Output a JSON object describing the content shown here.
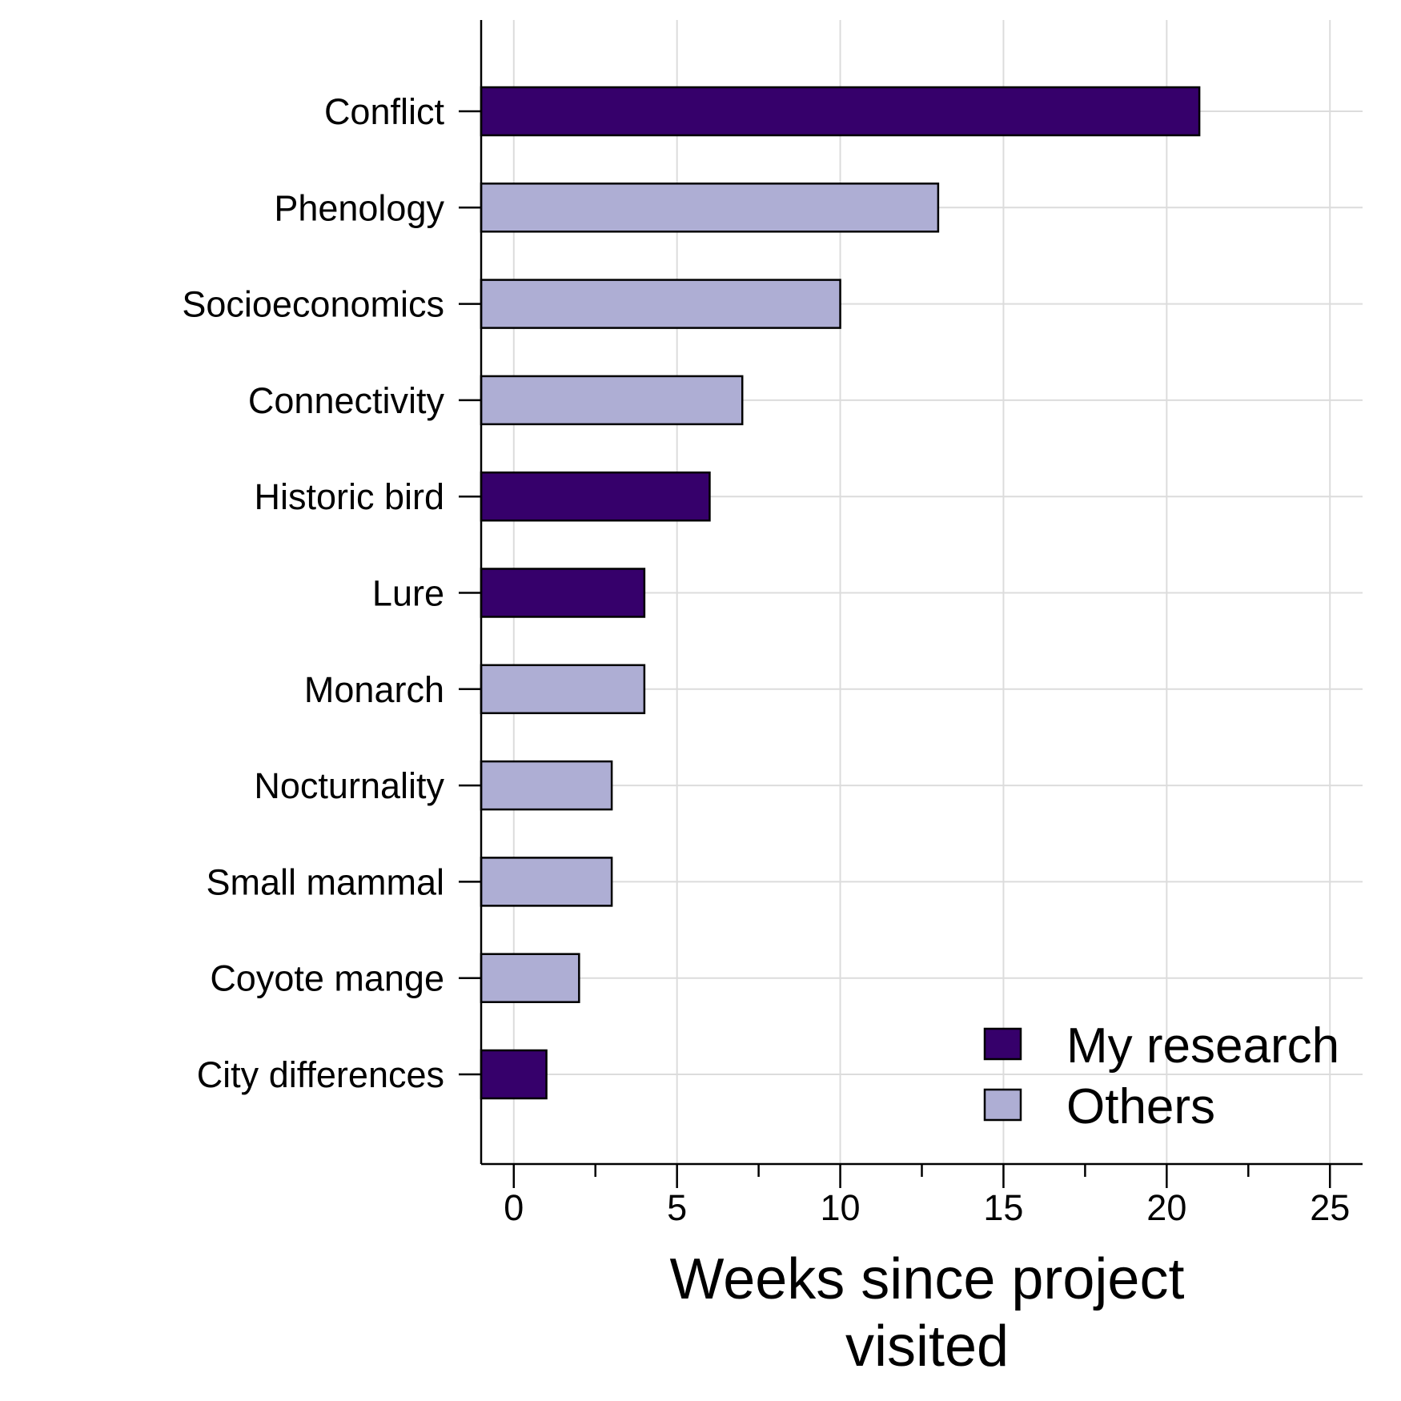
{
  "chart_data": {
    "type": "bar",
    "orientation": "horizontal",
    "categories": [
      "Conflict",
      "Phenology",
      "Socioeconomics",
      "Connectivity",
      "Historic bird",
      "Lure",
      "Monarch",
      "Nocturnality",
      "Small mammal",
      "Coyote mange",
      "City differences"
    ],
    "values": [
      21,
      13,
      10,
      7,
      6,
      4,
      4,
      3,
      3,
      2,
      1
    ],
    "groups": [
      "My research",
      "Others",
      "Others",
      "Others",
      "My research",
      "My research",
      "Others",
      "Others",
      "Others",
      "Others",
      "My research"
    ],
    "xlabel_lines": [
      "Weeks since project",
      "visited"
    ],
    "xticks": [
      0,
      5,
      10,
      15,
      20,
      25
    ],
    "xlim": [
      -1,
      26
    ],
    "grid": true,
    "legend": {
      "position": "bottom-right",
      "entries": [
        {
          "label": "My research",
          "color": "#36006b"
        },
        {
          "label": "Others",
          "color": "#aeaed4"
        }
      ]
    }
  }
}
